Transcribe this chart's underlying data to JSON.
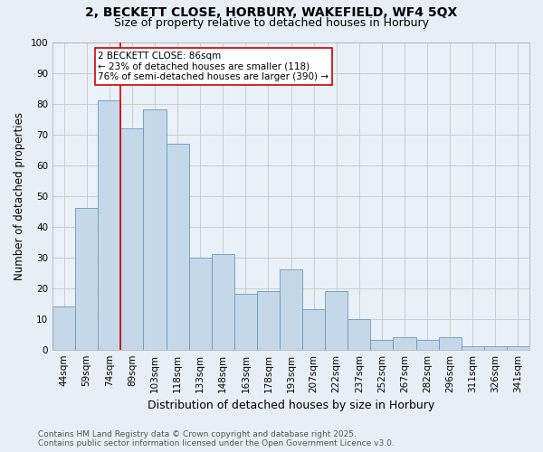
{
  "title_line1": "2, BECKETT CLOSE, HORBURY, WAKEFIELD, WF4 5QX",
  "title_line2": "Size of property relative to detached houses in Horbury",
  "xlabel": "Distribution of detached houses by size in Horbury",
  "ylabel": "Number of detached properties",
  "categories": [
    "44sqm",
    "59sqm",
    "74sqm",
    "89sqm",
    "103sqm",
    "118sqm",
    "133sqm",
    "148sqm",
    "163sqm",
    "178sqm",
    "193sqm",
    "207sqm",
    "222sqm",
    "237sqm",
    "252sqm",
    "267sqm",
    "282sqm",
    "296sqm",
    "311sqm",
    "326sqm",
    "341sqm"
  ],
  "bar_values": [
    14,
    46,
    81,
    72,
    78,
    67,
    30,
    31,
    18,
    19,
    26,
    13,
    19,
    10,
    3,
    4,
    3,
    4,
    1,
    1,
    1
  ],
  "bar_color": "#c5d8ea",
  "bar_edge_color": "#6699bb",
  "red_line_index": 3,
  "annotation_title": "2 BECKETT CLOSE: 86sqm",
  "annotation_line2": "← 23% of detached houses are smaller (118)",
  "annotation_line3": "76% of semi-detached houses are larger (390) →",
  "annotation_box_color": "#ffffff",
  "annotation_box_edge": "#cc0000",
  "red_line_color": "#cc0000",
  "ylim": [
    0,
    100
  ],
  "yticks": [
    0,
    10,
    20,
    30,
    40,
    50,
    60,
    70,
    80,
    90,
    100
  ],
  "grid_color": "#cccccc",
  "footer_line1": "Contains HM Land Registry data © Crown copyright and database right 2025.",
  "footer_line2": "Contains public sector information licensed under the Open Government Licence v3.0.",
  "background_color": "#e8eef5",
  "plot_bg_color": "#eaf0f7",
  "title_fontsize": 10,
  "subtitle_fontsize": 9,
  "axis_label_fontsize": 8.5,
  "tick_fontsize": 7.5,
  "annotation_fontsize": 7.5,
  "footer_fontsize": 6.5
}
